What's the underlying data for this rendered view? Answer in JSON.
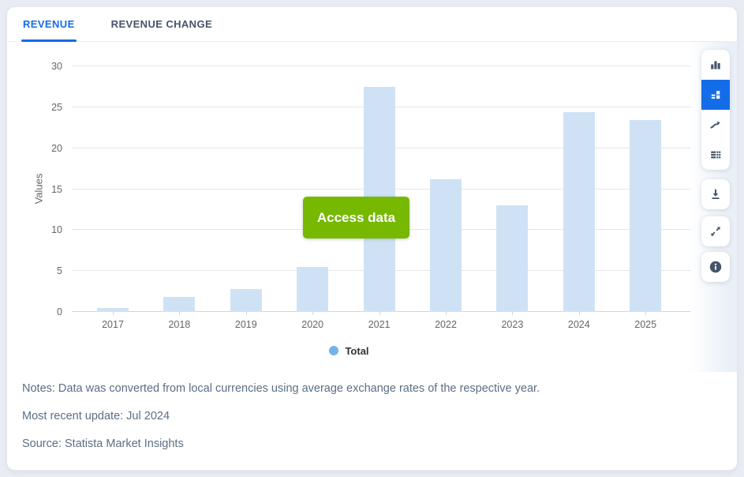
{
  "tabs": [
    {
      "label": "REVENUE",
      "active": true
    },
    {
      "label": "REVENUE CHANGE",
      "active": false
    }
  ],
  "access_button": {
    "label": "Access data",
    "color": "#76b900"
  },
  "chart_data": {
    "type": "bar",
    "title": "",
    "categories": [
      "2017",
      "2018",
      "2019",
      "2020",
      "2021",
      "2022",
      "2023",
      "2024",
      "2025"
    ],
    "series": [
      {
        "name": "Total",
        "values": [
          0.5,
          1.8,
          2.8,
          5.5,
          27.5,
          16.2,
          13.0,
          24.4,
          23.4
        ]
      }
    ],
    "xlabel": "",
    "ylabel": "Values",
    "ylim": [
      0,
      30
    ],
    "yticks": [
      0,
      5,
      10,
      15,
      20,
      25,
      30
    ],
    "grid": true,
    "legend_position": "bottom",
    "bar_color": "#cfe2f5",
    "legend_marker_color": "#74b3ea"
  },
  "toolbar": {
    "selected_color": "#146ce8",
    "icon_color": "#44546a",
    "chart_type_buttons": [
      {
        "icon": "column-chart-icon",
        "selected": false
      },
      {
        "icon": "block-chart-icon",
        "selected": true
      },
      {
        "icon": "trend-line-icon",
        "selected": false
      },
      {
        "icon": "data-table-icon",
        "selected": false
      }
    ],
    "action_buttons": [
      {
        "icon": "download-icon"
      },
      {
        "icon": "expand-icon"
      },
      {
        "icon": "info-icon"
      }
    ]
  },
  "notes": {
    "line1": "Notes: Data was converted from local currencies using average exchange rates of the respective year.",
    "line2": "Most recent update: Jul 2024",
    "line3": "Source: Statista Market Insights"
  }
}
